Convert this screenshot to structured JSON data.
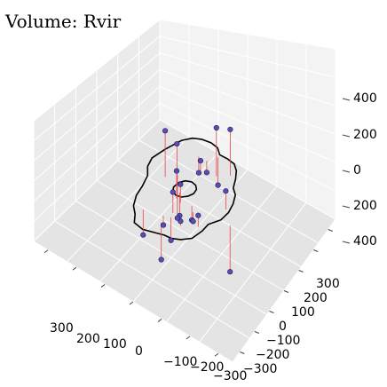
{
  "chart_data": {
    "type": "scatter",
    "projection": "3d",
    "title": "Volume: Rvir",
    "x_axis": {
      "ticks": [
        "300",
        "200",
        "100",
        "0",
        "−100",
        "−200",
        "−300"
      ]
    },
    "y_axis": {
      "ticks": [
        "300",
        "200",
        "100",
        "0",
        "−100",
        "−200",
        "−300"
      ]
    },
    "z_axis": {
      "ticks": [
        "400",
        "200",
        "0",
        "200",
        "400"
      ]
    },
    "grid": true,
    "point_color": "#5a4bb5",
    "stem_color": "#e8464a",
    "outline_color": "#000000",
    "points": [
      {
        "x": 150,
        "y": 20,
        "z": 120,
        "z_floor": -80
      },
      {
        "x": 115,
        "y": 40,
        "z": 80,
        "z_floor": -40
      },
      {
        "x": 90,
        "y": 100,
        "z": -60,
        "z_floor": 10
      },
      {
        "x": 80,
        "y": 160,
        "z": -140,
        "z_floor": -20
      },
      {
        "x": 20,
        "y": 120,
        "z": 180,
        "z_floor": -30
      },
      {
        "x": -10,
        "y": 150,
        "z": 180,
        "z_floor": -20
      },
      {
        "x": 10,
        "y": 60,
        "z": 80,
        "z_floor": 20
      },
      {
        "x": 30,
        "y": -10,
        "z": 60,
        "z_floor": -60
      },
      {
        "x": 0,
        "y": -40,
        "z": 10,
        "z_floor": -80
      },
      {
        "x": -10,
        "y": -20,
        "z": 40,
        "z_floor": -40
      },
      {
        "x": -40,
        "y": -40,
        "z": -60,
        "z_floor": 40
      },
      {
        "x": -60,
        "y": -10,
        "z": -80,
        "z_floor": -20
      },
      {
        "x": -30,
        "y": -90,
        "z": -80,
        "z_floor": -40
      },
      {
        "x": -80,
        "y": -60,
        "z": -40,
        "z_floor": -60
      },
      {
        "x": -120,
        "y": -40,
        "z": -20,
        "z_floor": 20
      },
      {
        "x": -110,
        "y": -110,
        "z": -70,
        "z_floor": 30
      },
      {
        "x": -150,
        "y": -40,
        "z": 30,
        "z_floor": -20
      },
      {
        "x": -140,
        "y": 60,
        "z": 70,
        "z_floor": -10
      },
      {
        "x": -200,
        "y": 40,
        "z": -220,
        "z_floor": -20
      },
      {
        "x": 20,
        "y": -130,
        "z": -140,
        "z_floor": -30
      },
      {
        "x": -70,
        "y": -120,
        "z": -180,
        "z_floor": -20
      },
      {
        "x": 60,
        "y": 10,
        "z": -180,
        "z_floor": 10
      },
      {
        "x": 60,
        "y": 110,
        "z": -40,
        "z_floor": 10
      }
    ],
    "outer_contour": [
      [
        190,
        100
      ],
      [
        185,
        40
      ],
      [
        175,
        -10
      ],
      [
        150,
        -40
      ],
      [
        115,
        -60
      ],
      [
        85,
        -95
      ],
      [
        60,
        -130
      ],
      [
        25,
        -160
      ],
      [
        -10,
        -175
      ],
      [
        -40,
        -195
      ],
      [
        -80,
        -190
      ],
      [
        -110,
        -170
      ],
      [
        -140,
        -150
      ],
      [
        -165,
        -140
      ],
      [
        -185,
        -120
      ],
      [
        -200,
        -90
      ],
      [
        -190,
        -50
      ],
      [
        -175,
        -20
      ],
      [
        -180,
        20
      ],
      [
        -165,
        55
      ],
      [
        -140,
        85
      ],
      [
        -110,
        110
      ],
      [
        -80,
        120
      ],
      [
        -50,
        145
      ],
      [
        -20,
        165
      ],
      [
        10,
        175
      ],
      [
        40,
        170
      ],
      [
        70,
        160
      ],
      [
        100,
        170
      ],
      [
        130,
        165
      ],
      [
        160,
        150
      ],
      [
        180,
        130
      ],
      [
        190,
        100
      ]
    ],
    "inner_contour": [
      [
        35,
        0
      ],
      [
        30,
        20
      ],
      [
        15,
        33
      ],
      [
        -5,
        35
      ],
      [
        -22,
        28
      ],
      [
        -33,
        12
      ],
      [
        -33,
        -8
      ],
      [
        -25,
        -25
      ],
      [
        -8,
        -35
      ],
      [
        12,
        -33
      ],
      [
        27,
        -22
      ],
      [
        35,
        0
      ]
    ]
  }
}
